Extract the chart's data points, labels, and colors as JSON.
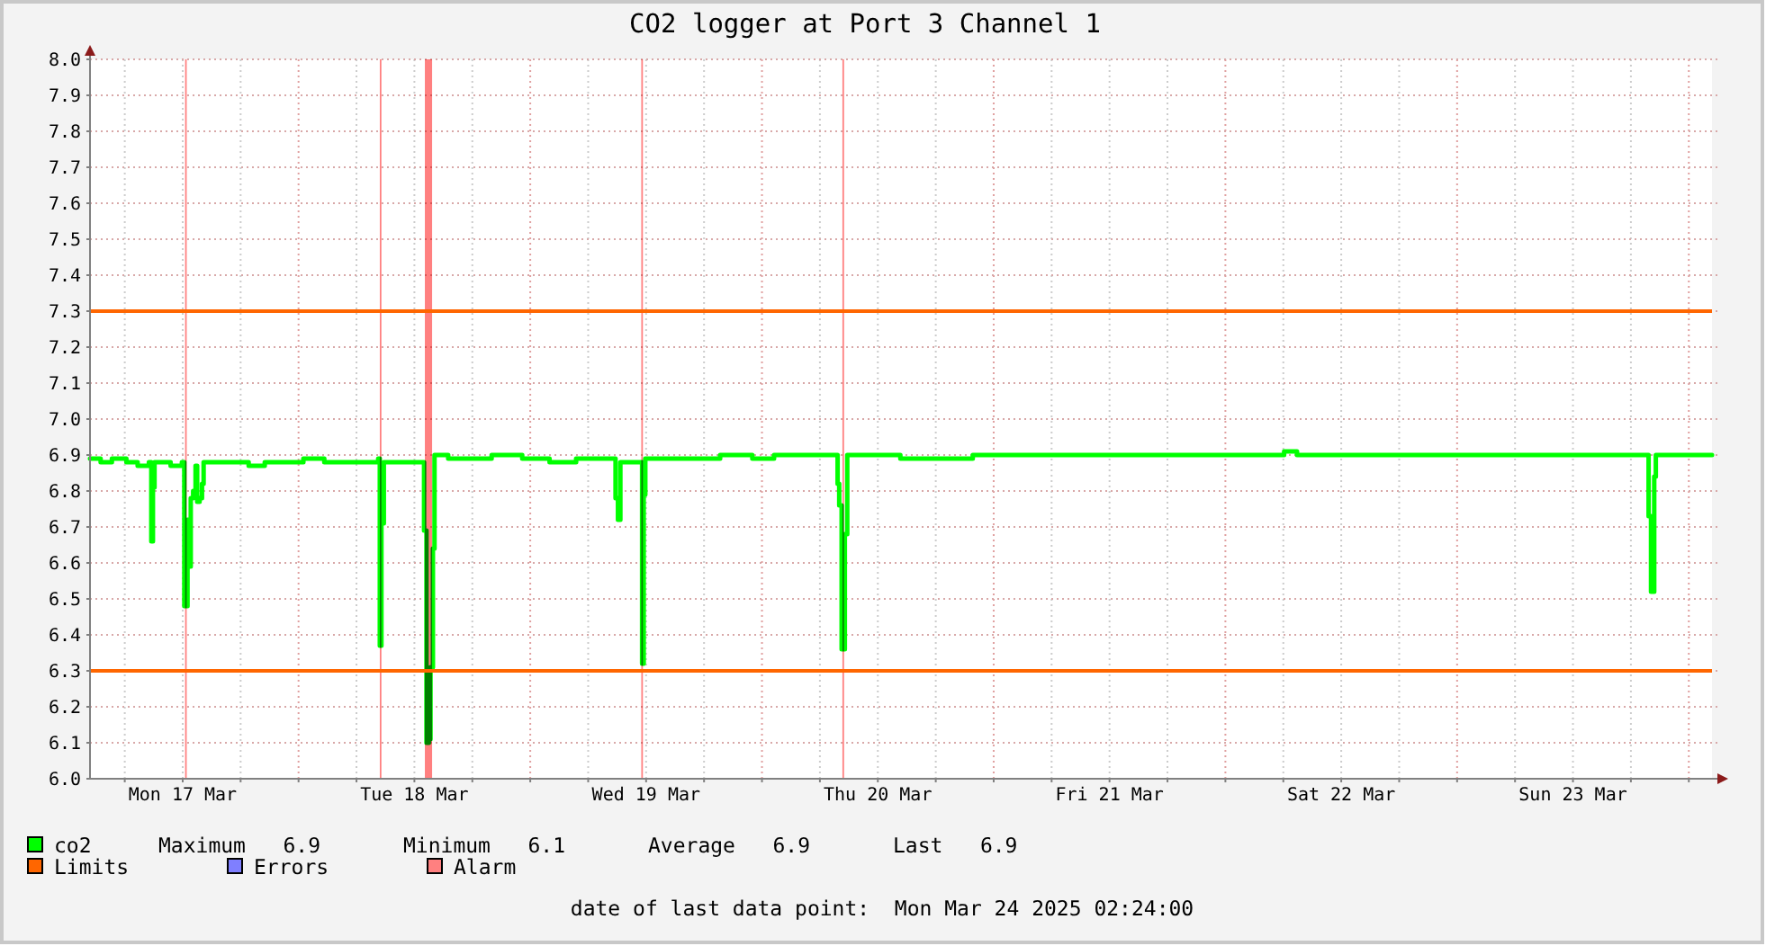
{
  "chart_data": {
    "type": "step",
    "title": "CO2 logger at Port 3 Channel 1",
    "xlim": [
      "2025-03-17T02:24",
      "2025-03-24T02:24"
    ],
    "xticks": [
      {
        "value": "2025-03-17T06:00",
        "label": null
      },
      {
        "value": "2025-03-17T12:00",
        "label": "Mon 17 Mar"
      },
      {
        "value": "2025-03-17T18:00",
        "label": null
      },
      {
        "value": "2025-03-18T00:00",
        "label": null
      },
      {
        "value": "2025-03-18T06:00",
        "label": null
      },
      {
        "value": "2025-03-18T12:00",
        "label": "Tue 18 Mar"
      },
      {
        "value": "2025-03-18T18:00",
        "label": null
      },
      {
        "value": "2025-03-19T00:00",
        "label": null
      },
      {
        "value": "2025-03-19T06:00",
        "label": null
      },
      {
        "value": "2025-03-19T12:00",
        "label": "Wed 19 Mar"
      },
      {
        "value": "2025-03-19T18:00",
        "label": null
      },
      {
        "value": "2025-03-20T00:00",
        "label": null
      },
      {
        "value": "2025-03-20T06:00",
        "label": null
      },
      {
        "value": "2025-03-20T12:00",
        "label": "Thu 20 Mar"
      },
      {
        "value": "2025-03-20T18:00",
        "label": null
      },
      {
        "value": "2025-03-21T00:00",
        "label": null
      },
      {
        "value": "2025-03-21T06:00",
        "label": null
      },
      {
        "value": "2025-03-21T12:00",
        "label": "Fri 21 Mar"
      },
      {
        "value": "2025-03-21T18:00",
        "label": null
      },
      {
        "value": "2025-03-22T00:00",
        "label": null
      },
      {
        "value": "2025-03-22T06:00",
        "label": null
      },
      {
        "value": "2025-03-22T12:00",
        "label": "Sat 22 Mar"
      },
      {
        "value": "2025-03-22T18:00",
        "label": null
      },
      {
        "value": "2025-03-23T00:00",
        "label": null
      },
      {
        "value": "2025-03-23T06:00",
        "label": null
      },
      {
        "value": "2025-03-23T12:00",
        "label": "Sun 23 Mar"
      },
      {
        "value": "2025-03-23T18:00",
        "label": null
      },
      {
        "value": "2025-03-24T00:00",
        "label": null
      }
    ],
    "ylim": [
      6.0,
      8.0
    ],
    "yticks": [
      {
        "value": 6,
        "label": "6.0"
      },
      6.1,
      6.2,
      6.3,
      6.4,
      6.5,
      6.6,
      6.7,
      6.8,
      6.9,
      {
        "value": 7,
        "label": "7.0"
      },
      7.1,
      7.2,
      7.3,
      7.4,
      7.5,
      7.6,
      7.7,
      7.8,
      7.9,
      {
        "value": 8,
        "label": "8.0"
      }
    ],
    "grid": true,
    "legend": "bottom",
    "series": [
      {
        "name": "co2",
        "color": "#00ff00",
        "x": [
          "2025-03-17T02:24",
          "2025-03-17T03:30",
          "2025-03-17T04:40",
          "2025-03-17T06:10",
          "2025-03-17T07:20",
          "2025-03-17T08:30",
          "2025-03-17T08:45",
          "2025-03-17T08:55",
          "2025-03-17T09:05",
          "2025-03-17T10:45",
          "2025-03-17T11:55",
          "2025-03-17T12:10",
          "2025-03-17T12:30",
          "2025-03-17T12:40",
          "2025-03-17T12:50",
          "2025-03-17T13:05",
          "2025-03-17T13:20",
          "2025-03-17T13:30",
          "2025-03-17T13:45",
          "2025-03-17T14:00",
          "2025-03-17T14:10",
          "2025-03-17T17:20",
          "2025-03-17T18:50",
          "2025-03-17T20:30",
          "2025-03-17T23:00",
          "2025-03-18T00:30",
          "2025-03-18T02:40",
          "2025-03-18T06:25",
          "2025-03-18T08:15",
          "2025-03-18T08:25",
          "2025-03-18T08:35",
          "2025-03-18T08:50",
          "2025-03-18T11:00",
          "2025-03-18T12:50",
          "2025-03-18T13:00",
          "2025-03-18T13:15",
          "2025-03-18T13:30",
          "2025-03-18T13:40",
          "2025-03-18T13:55",
          "2025-03-18T14:05",
          "2025-03-18T15:30",
          "2025-03-18T17:35",
          "2025-03-18T20:00",
          "2025-03-18T23:10",
          "2025-03-19T02:00",
          "2025-03-19T04:45",
          "2025-03-19T08:40",
          "2025-03-19T08:50",
          "2025-03-19T09:05",
          "2025-03-19T09:20",
          "2025-03-19T11:15",
          "2025-03-19T11:35",
          "2025-03-19T11:45",
          "2025-03-19T11:55",
          "2025-03-19T14:30",
          "2025-03-19T17:50",
          "2025-03-19T19:40",
          "2025-03-19T23:00",
          "2025-03-20T01:15",
          "2025-03-20T04:30",
          "2025-03-20T07:35",
          "2025-03-20T07:50",
          "2025-03-20T08:00",
          "2025-03-20T08:15",
          "2025-03-20T08:35",
          "2025-03-20T08:50",
          "2025-03-20T14:20",
          "2025-03-20T21:50",
          "2025-03-21T05:15",
          "2025-03-21T12:45",
          "2025-03-21T20:10",
          "2025-03-22T06:05",
          "2025-03-22T07:25",
          "2025-03-22T18:35",
          "2025-03-23T05:45",
          "2025-03-23T19:40",
          "2025-03-23T19:50",
          "2025-03-23T20:05",
          "2025-03-23T20:25",
          "2025-03-23T20:35",
          "2025-03-24T02:24"
        ],
        "values": [
          6.89,
          6.88,
          6.89,
          6.88,
          6.87,
          6.88,
          6.66,
          6.81,
          6.88,
          6.87,
          6.88,
          6.48,
          6.72,
          6.59,
          6.78,
          6.8,
          6.87,
          6.77,
          6.78,
          6.82,
          6.88,
          6.88,
          6.87,
          6.88,
          6.88,
          6.89,
          6.88,
          6.88,
          6.89,
          6.37,
          6.71,
          6.88,
          6.88,
          6.88,
          6.69,
          6.1,
          6.11,
          6.31,
          6.64,
          6.9,
          6.89,
          6.89,
          6.9,
          6.89,
          6.88,
          6.89,
          6.89,
          6.78,
          6.72,
          6.88,
          6.88,
          6.32,
          6.79,
          6.89,
          6.89,
          6.89,
          6.9,
          6.89,
          6.9,
          6.9,
          6.9,
          6.82,
          6.76,
          6.36,
          6.68,
          6.9,
          6.89,
          6.9,
          6.9,
          6.9,
          6.9,
          6.91,
          6.9,
          6.9,
          6.9,
          6.9,
          6.73,
          6.52,
          6.84,
          6.9,
          6.9
        ]
      },
      {
        "name": "Errors",
        "color": "#7f7fff"
      }
    ],
    "ref_lines": [
      {
        "axis": "y",
        "value": 7.3,
        "label": "Limits",
        "color": "#ff6600"
      },
      {
        "axis": "y",
        "value": 6.3,
        "color": "#ff6600"
      }
    ],
    "bands": [
      {
        "axis": "x",
        "from": "2025-03-17T12:15",
        "to": "2025-03-17T12:25",
        "label": "Alarm",
        "color": "#ff8080"
      },
      {
        "axis": "x",
        "from": "2025-03-18T08:25",
        "to": "2025-03-18T08:35",
        "color": "#ff8080"
      },
      {
        "axis": "x",
        "from": "2025-03-18T13:05",
        "to": "2025-03-18T13:50",
        "color": "#ff8080"
      },
      {
        "axis": "x",
        "from": "2025-03-19T11:30",
        "to": "2025-03-19T11:40",
        "color": "#ff8080"
      },
      {
        "axis": "x",
        "from": "2025-03-20T08:20",
        "to": "2025-03-20T08:30",
        "color": "#ff8080"
      }
    ],
    "annotations": [
      "Maximum   6.9",
      "Minimum   6.1",
      "Average   6.9",
      "Last   6.9",
      "date of last data point:  Mon Mar 24 2025 02:24:00"
    ]
  }
}
